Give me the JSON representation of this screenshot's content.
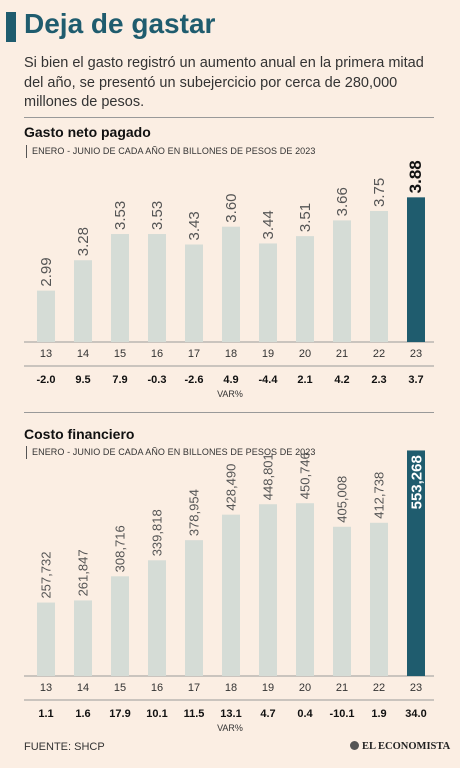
{
  "header": {
    "title": "Deja de gastar",
    "intro": "Si bien el gasto registró un aumento anual en la primera mitad del año, se presentó un subejercicio por cerca de 280,000 millones de pesos."
  },
  "colors": {
    "bar": "#d5dcd6",
    "highlight": "#1f5c6e",
    "title": "#1f5c6e",
    "background": "#fbeee3"
  },
  "chart_data": [
    {
      "type": "bar",
      "title": "Gasto neto pagado",
      "subtitle": "ENERO - JUNIO DE CADA AÑO EN BILLONES DE PESOS DE 2023",
      "categories": [
        "13",
        "14",
        "15",
        "16",
        "17",
        "18",
        "19",
        "20",
        "21",
        "22",
        "23"
      ],
      "values": [
        2.99,
        3.28,
        3.53,
        3.53,
        3.43,
        3.6,
        3.44,
        3.51,
        3.66,
        3.75,
        3.88
      ],
      "value_labels": [
        "2.99",
        "3.28",
        "3.53",
        "3.53",
        "3.43",
        "3.60",
        "3.44",
        "3.51",
        "3.66",
        "3.75",
        "3.88"
      ],
      "var_label": "VAR%",
      "var": [
        "-2.0",
        "9.5",
        "7.9",
        "-0.3",
        "-2.6",
        "4.9",
        "-4.4",
        "2.1",
        "4.2",
        "2.3",
        "3.7"
      ],
      "highlight_index": 10,
      "ylim": [
        2.5,
        3.95
      ]
    },
    {
      "type": "bar",
      "title": "Costo financiero",
      "subtitle": "ENERO - JUNIO DE CADA AÑO EN BILLONES DE PESOS DE 2023",
      "categories": [
        "13",
        "14",
        "15",
        "16",
        "17",
        "18",
        "19",
        "20",
        "21",
        "22",
        "23"
      ],
      "values": [
        257732,
        261847,
        308716,
        339818,
        378954,
        428490,
        448801,
        450746,
        405008,
        412738,
        553268
      ],
      "value_labels": [
        "257,732",
        "261,847",
        "308,716",
        "339,818",
        "378,954",
        "428,490",
        "448,801",
        "450,746",
        "405,008",
        "412,738",
        "553,268"
      ],
      "var_label": "VAR%",
      "var": [
        "1.1",
        "1.6",
        "17.9",
        "10.1",
        "11.5",
        "13.1",
        "4.7",
        "0.4",
        "-10.1",
        "1.9",
        "34.0"
      ],
      "highlight_index": 10,
      "ylim": [
        115000,
        560000
      ]
    }
  ],
  "footer": {
    "source": "FUENTE: SHCP",
    "logo": "EL ECONOMISTA"
  }
}
